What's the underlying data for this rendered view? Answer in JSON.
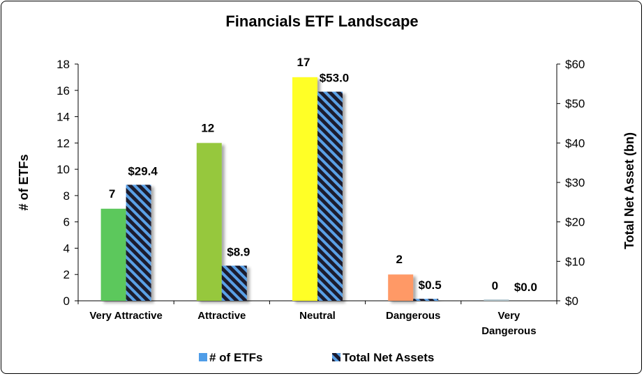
{
  "chart_data": {
    "type": "bar",
    "title": "Financials ETF Landscape",
    "categories": [
      [
        "Very Attractive"
      ],
      [
        "Attractive"
      ],
      [
        "Neutral"
      ],
      [
        "Dangerous"
      ],
      [
        "Very",
        "Dangerous"
      ]
    ],
    "bar_colors": [
      "#5cc85c",
      "#96c83c",
      "#ffff28",
      "#ff9966",
      "#b4c8d0"
    ],
    "series": [
      {
        "name": "# of ETFs",
        "axis": "left",
        "values": [
          7,
          12,
          17,
          2,
          0
        ],
        "labels": [
          "7",
          "12",
          "17",
          "2",
          "0"
        ],
        "legend_color": "#4f9de8"
      },
      {
        "name": "Total Net Assets",
        "axis": "right",
        "values": [
          29.4,
          8.9,
          53.0,
          0.5,
          0.0
        ],
        "labels": [
          "$29.4",
          "$8.9",
          "$53.0",
          "$0.5",
          "$0.0"
        ],
        "pattern_colors": [
          "#1a1a2e",
          "#5aa0e6"
        ]
      }
    ],
    "ylabel_left": "# of ETFs",
    "ylabel_right": "Total Net Asset (bn)",
    "ylim_left": [
      0,
      18
    ],
    "ylim_right": [
      0,
      60
    ],
    "yticks_left": [
      "0",
      "2",
      "4",
      "6",
      "8",
      "10",
      "12",
      "14",
      "16",
      "18"
    ],
    "yticks_right": [
      "$0",
      "$10",
      "$20",
      "$30",
      "$40",
      "$50",
      "$60"
    ],
    "legend_position": "bottom",
    "grid": false
  }
}
